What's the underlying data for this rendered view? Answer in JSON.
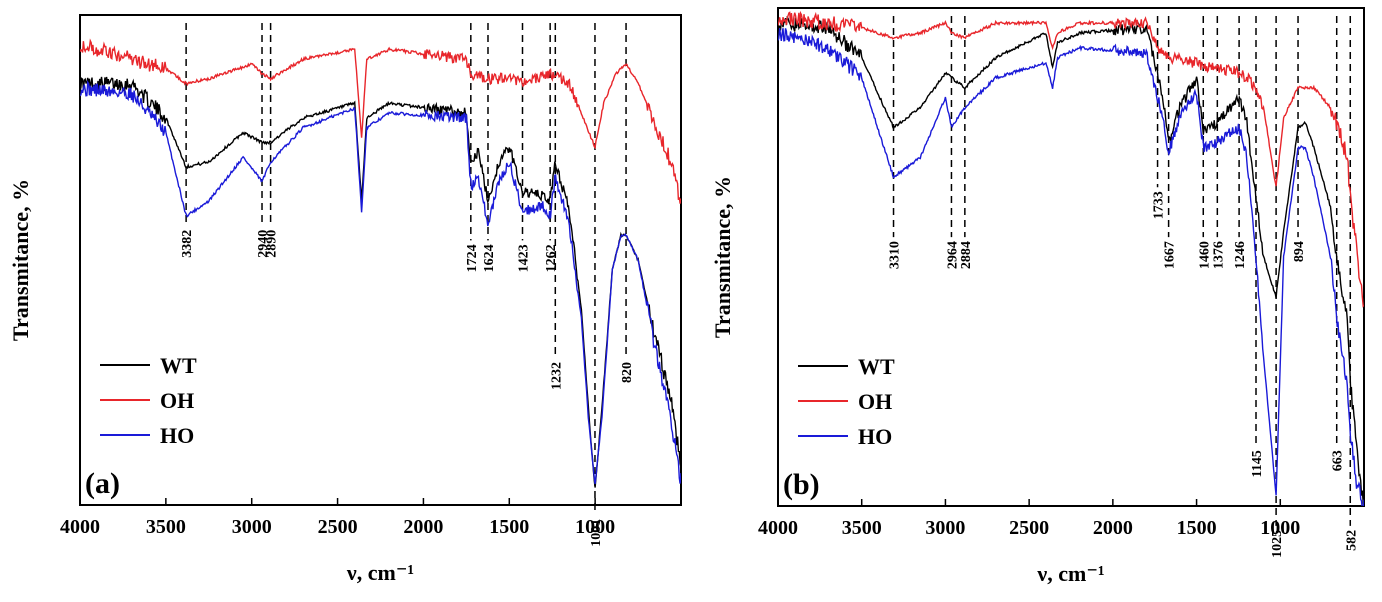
{
  "chart_data": [
    {
      "type": "line",
      "panel_label": "(a)",
      "xlabel": "ν, cm⁻¹",
      "ylabel": "Transmitance, %",
      "xlim": [
        4000,
        500
      ],
      "ylim": [
        0,
        100
      ],
      "x_ticks": [
        4000,
        3500,
        3000,
        2500,
        2000,
        1500,
        1000
      ],
      "legend": {
        "position": "bottom-left",
        "entries": [
          "WT",
          "OH",
          "HO"
        ]
      },
      "series": [
        {
          "name": "WT",
          "color": "#000000",
          "x": [
            4000,
            3700,
            3500,
            3382,
            3250,
            3050,
            2940,
            2890,
            2700,
            2400,
            2360,
            2330,
            2200,
            1750,
            1724,
            1680,
            1624,
            1560,
            1500,
            1423,
            1300,
            1262,
            1232,
            1150,
            1080,
            1040,
            1001,
            960,
            900,
            850,
            820,
            750,
            650,
            560,
            500
          ],
          "y": [
            86,
            86,
            79,
            69,
            70,
            76,
            74,
            74,
            79,
            82,
            62,
            79,
            82,
            80,
            70,
            72,
            62,
            70,
            73,
            64,
            63,
            62,
            70,
            60,
            40,
            20,
            3,
            20,
            48,
            55,
            55,
            50,
            34,
            22,
            8
          ]
        },
        {
          "name": "OH",
          "color": "#e8262b",
          "x": [
            4000,
            3700,
            3500,
            3382,
            3250,
            3000,
            2940,
            2890,
            2700,
            2400,
            2360,
            2330,
            2200,
            1750,
            1724,
            1624,
            1500,
            1423,
            1262,
            1150,
            1080,
            1001,
            950,
            880,
            820,
            750,
            650,
            560,
            500
          ],
          "y": [
            94,
            91,
            89,
            86,
            87,
            90,
            88,
            87,
            91,
            93,
            75,
            91,
            93,
            91,
            88,
            87,
            87,
            86,
            88,
            86,
            80,
            73,
            82,
            88,
            90,
            86,
            78,
            70,
            62
          ]
        },
        {
          "name": "HO",
          "color": "#1a1ad8",
          "x": [
            4000,
            3700,
            3500,
            3382,
            3250,
            3050,
            2940,
            2890,
            2700,
            2400,
            2360,
            2330,
            2200,
            1750,
            1724,
            1680,
            1624,
            1560,
            1500,
            1423,
            1300,
            1262,
            1232,
            1150,
            1080,
            1040,
            1001,
            960,
            900,
            850,
            820,
            750,
            650,
            560,
            500
          ],
          "y": [
            85,
            84,
            76,
            59,
            62,
            71,
            66,
            70,
            77,
            81,
            60,
            77,
            80,
            79,
            65,
            67,
            57,
            66,
            70,
            60,
            61,
            59,
            67,
            57,
            38,
            18,
            4,
            18,
            48,
            55,
            55,
            50,
            32,
            18,
            5
          ]
        }
      ],
      "peak_labels": [
        {
          "x": 3382,
          "label": "3382",
          "y_text": 57
        },
        {
          "x": 2940,
          "label": "2940",
          "y_text": 57
        },
        {
          "x": 2890,
          "label": "2890",
          "y_text": 57
        },
        {
          "x": 1724,
          "label": "1724",
          "y_text": 54
        },
        {
          "x": 1624,
          "label": "1624",
          "y_text": 54
        },
        {
          "x": 1423,
          "label": "1423",
          "y_text": 54
        },
        {
          "x": 1262,
          "label": "1262",
          "y_text": 54
        },
        {
          "x": 1232,
          "label": "1232",
          "y_text": 30
        },
        {
          "x": 820,
          "label": "820",
          "y_text": 30
        },
        {
          "x": 1001,
          "label": "1001",
          "y_text": -2
        }
      ]
    },
    {
      "type": "line",
      "panel_label": "(b)",
      "xlabel": "ν, cm⁻¹",
      "ylabel": "Transmitance, %",
      "xlim": [
        4000,
        500
      ],
      "ylim": [
        0,
        100
      ],
      "x_ticks": [
        4000,
        3500,
        3000,
        2500,
        2000,
        1500,
        1000
      ],
      "legend": {
        "position": "bottom-left",
        "entries": [
          "WT",
          "OH",
          "HO"
        ]
      },
      "series": [
        {
          "name": "WT",
          "color": "#000000",
          "x": [
            4000,
            3700,
            3500,
            3310,
            3150,
            3000,
            2964,
            2884,
            2700,
            2400,
            2360,
            2330,
            2200,
            1800,
            1733,
            1700,
            1667,
            1600,
            1500,
            1460,
            1376,
            1300,
            1246,
            1200,
            1145,
            1100,
            1025,
            980,
            894,
            850,
            800,
            700,
            663,
            600,
            582,
            540,
            500
          ],
          "y": [
            97,
            96,
            90,
            76,
            80,
            87,
            86,
            84,
            90,
            95,
            88,
            93,
            95,
            96,
            87,
            82,
            73,
            80,
            86,
            75,
            77,
            80,
            82,
            77,
            62,
            50,
            42,
            55,
            76,
            77,
            72,
            60,
            50,
            38,
            25,
            10,
            0
          ]
        },
        {
          "name": "OH",
          "color": "#e8262b",
          "x": [
            4000,
            3700,
            3500,
            3310,
            3150,
            3000,
            2964,
            2884,
            2700,
            2400,
            2360,
            2330,
            2200,
            1800,
            1733,
            1667,
            1500,
            1460,
            1376,
            1246,
            1200,
            1145,
            1100,
            1025,
            980,
            894,
            850,
            800,
            700,
            663,
            600,
            582,
            540,
            500
          ],
          "y": [
            98,
            97,
            96,
            94,
            95,
            97,
            95,
            94,
            97,
            97,
            92,
            95,
            97,
            97,
            92,
            90,
            89,
            88,
            88,
            87,
            86,
            84,
            80,
            64,
            78,
            84,
            84,
            84,
            80,
            77,
            70,
            62,
            50,
            40
          ]
        },
        {
          "name": "HO",
          "color": "#1a1ad8",
          "x": [
            4000,
            3700,
            3500,
            3310,
            3150,
            3000,
            2964,
            2884,
            2700,
            2400,
            2360,
            2330,
            2200,
            1800,
            1733,
            1700,
            1667,
            1600,
            1500,
            1460,
            1376,
            1300,
            1246,
            1200,
            1145,
            1100,
            1025,
            980,
            894,
            850,
            800,
            700,
            663,
            600,
            582,
            540,
            500
          ],
          "y": [
            95,
            92,
            86,
            66,
            70,
            82,
            76,
            80,
            86,
            89,
            84,
            90,
            92,
            91,
            82,
            78,
            71,
            78,
            83,
            72,
            73,
            75,
            76,
            70,
            50,
            30,
            2,
            50,
            72,
            72,
            66,
            50,
            38,
            24,
            14,
            4,
            0
          ]
        }
      ],
      "peak_labels": [
        {
          "x": 3310,
          "label": "3310",
          "y_text": 54
        },
        {
          "x": 2964,
          "label": "2964",
          "y_text": 54
        },
        {
          "x": 2884,
          "label": "2884",
          "y_text": 54
        },
        {
          "x": 1733,
          "label": "1733",
          "y_text": 64
        },
        {
          "x": 1667,
          "label": "1667",
          "y_text": 54
        },
        {
          "x": 1460,
          "label": "1460",
          "y_text": 54
        },
        {
          "x": 1376,
          "label": "1376",
          "y_text": 54
        },
        {
          "x": 1246,
          "label": "1246",
          "y_text": 54
        },
        {
          "x": 894,
          "label": "894",
          "y_text": 54
        },
        {
          "x": 1145,
          "label": "1145",
          "y_text": 12
        },
        {
          "x": 663,
          "label": "663",
          "y_text": 12
        },
        {
          "x": 1025,
          "label": "1025",
          "y_text": -4
        },
        {
          "x": 582,
          "label": "582",
          "y_text": -4
        }
      ]
    }
  ]
}
